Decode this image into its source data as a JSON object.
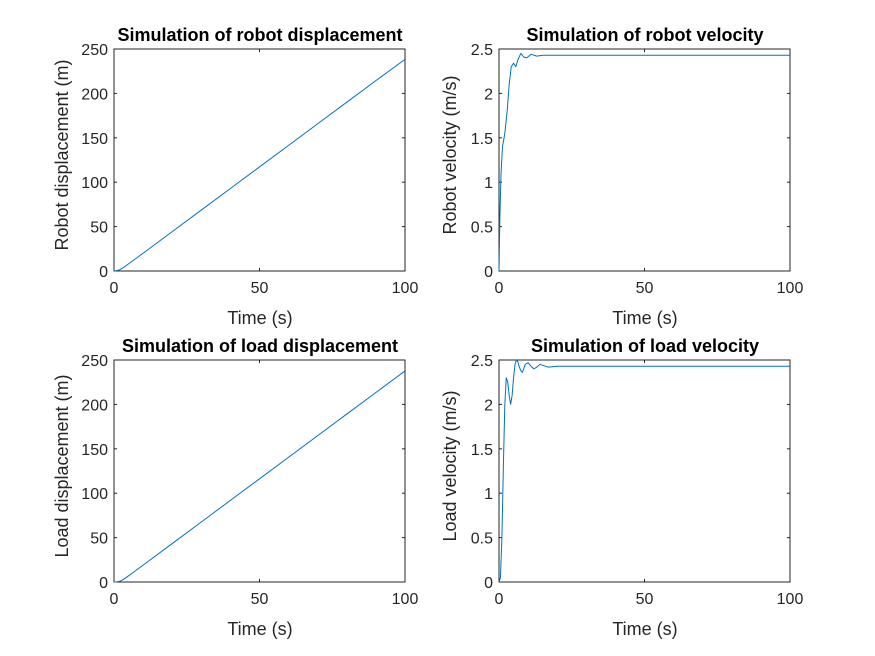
{
  "chart_data": [
    {
      "type": "line",
      "title": "Simulation of robot displacement",
      "xlabel": "Time (s)",
      "ylabel": "Robot displacement (m)",
      "xlim": [
        0,
        100
      ],
      "ylim": [
        0,
        250
      ],
      "xticks": [
        0,
        50,
        100
      ],
      "yticks": [
        0,
        50,
        100,
        150,
        200,
        250
      ],
      "grid": false,
      "line_color": "#0072BD",
      "series": [
        {
          "x": [
            0,
            1,
            2,
            3,
            4,
            5,
            6,
            8,
            10,
            20,
            30,
            40,
            50,
            60,
            70,
            80,
            90,
            100
          ],
          "y": [
            0,
            0.5,
            1.5,
            3.4,
            5.6,
            8.0,
            10.4,
            15.2,
            20.0,
            44.3,
            68.6,
            92.9,
            117.2,
            141.5,
            165.8,
            190.1,
            214.4,
            238.3
          ]
        }
      ]
    },
    {
      "type": "line",
      "title": "Simulation of robot velocity",
      "xlabel": "Time (s)",
      "ylabel": "Robot velocity (m/s)",
      "xlim": [
        0,
        100
      ],
      "ylim": [
        0,
        2.5
      ],
      "xticks": [
        0,
        50,
        100
      ],
      "yticks": [
        0,
        0.5,
        1,
        1.5,
        2,
        2.5
      ],
      "grid": false,
      "line_color": "#0072BD",
      "series": [
        {
          "x": [
            0,
            0.3,
            0.7,
            1.2,
            2,
            2.8,
            3.5,
            4.2,
            5,
            5.8,
            6.5,
            7.5,
            8.5,
            9.5,
            11,
            13,
            15,
            20,
            30,
            50,
            100
          ],
          "y": [
            0,
            0.6,
            1.1,
            1.4,
            1.55,
            1.8,
            2.1,
            2.3,
            2.34,
            2.3,
            2.38,
            2.45,
            2.41,
            2.4,
            2.44,
            2.42,
            2.43,
            2.43,
            2.43,
            2.43,
            2.43
          ]
        }
      ]
    },
    {
      "type": "line",
      "title": "Simulation of load displacement",
      "xlabel": "Time (s)",
      "ylabel": "Load displacement (m)",
      "xlim": [
        0,
        100
      ],
      "ylim": [
        0,
        250
      ],
      "xticks": [
        0,
        50,
        100
      ],
      "yticks": [
        0,
        50,
        100,
        150,
        200,
        250
      ],
      "grid": false,
      "line_color": "#0072BD",
      "series": [
        {
          "x": [
            0,
            1,
            2,
            3,
            4,
            5,
            6,
            8,
            10,
            20,
            30,
            40,
            50,
            60,
            70,
            80,
            90,
            100
          ],
          "y": [
            0,
            0.1,
            0.8,
            2.5,
            4.7,
            7.0,
            9.3,
            14.2,
            19.0,
            43.3,
            67.6,
            91.9,
            116.2,
            140.5,
            164.8,
            189.1,
            213.4,
            237.7
          ]
        }
      ]
    },
    {
      "type": "line",
      "title": "Simulation of load velocity",
      "xlabel": "Time (s)",
      "ylabel": "Load velocity (m/s)",
      "xlim": [
        0,
        100
      ],
      "ylim": [
        0,
        2.5
      ],
      "xticks": [
        0,
        50,
        100
      ],
      "yticks": [
        0,
        0.5,
        1,
        1.5,
        2,
        2.5
      ],
      "grid": false,
      "line_color": "#0072BD",
      "series": [
        {
          "x": [
            0,
            0.5,
            1,
            1.5,
            2,
            2.5,
            3,
            3.5,
            4,
            4.5,
            5,
            5.5,
            6,
            6.5,
            7,
            7.5,
            8,
            8.5,
            9,
            10,
            11,
            12,
            13,
            14,
            15,
            17,
            20,
            25,
            30,
            50,
            100
          ],
          "y": [
            0,
            0.05,
            0.5,
            1.3,
            2.0,
            2.3,
            2.25,
            2.1,
            2.0,
            2.1,
            2.3,
            2.45,
            2.5,
            2.48,
            2.42,
            2.38,
            2.36,
            2.4,
            2.45,
            2.47,
            2.43,
            2.4,
            2.42,
            2.45,
            2.44,
            2.42,
            2.43,
            2.43,
            2.43,
            2.43,
            2.43
          ]
        }
      ]
    }
  ]
}
